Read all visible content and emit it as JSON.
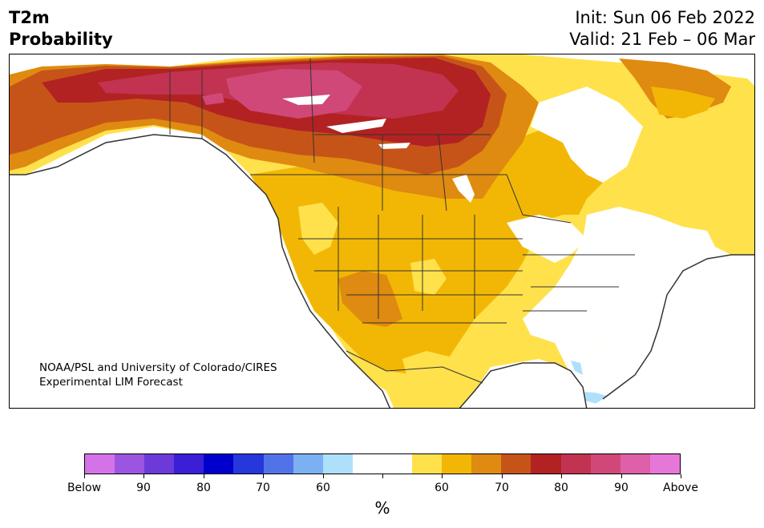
{
  "header": {
    "title_line1": "T2m",
    "title_line2": "Probability",
    "init": "Init: Sun 06 Feb 2022",
    "valid": "Valid: 21 Feb – 06 Mar"
  },
  "credit": {
    "line1": "NOAA/PSL and University of Colorado/CIRES",
    "line2": "Experimental LIM Forecast"
  },
  "colorbar": {
    "unit": "%",
    "colors": [
      "#d473e8",
      "#9b55e0",
      "#6b3ad8",
      "#3a1fd6",
      "#0000cc",
      "#2637db",
      "#5273e8",
      "#7bb1f2",
      "#aee0fb",
      "#ffffff",
      "#ffffff",
      "#ffe14c",
      "#f2b705",
      "#df8a10",
      "#c65418",
      "#b22222",
      "#c13350",
      "#cf4878",
      "#dd60a8",
      "#e676d8"
    ],
    "ticks": [
      "Below",
      "90",
      "80",
      "70",
      "60",
      "",
      "60",
      "70",
      "80",
      "90",
      "Above"
    ]
  },
  "map": {
    "palette": {
      "p60": "#ffe14c",
      "p65": "#f2b705",
      "p70": "#df8a10",
      "p75": "#c65418",
      "p80": "#b22222",
      "p85": "#c13350",
      "p90": "#cf4878",
      "b60": "#aee0fb",
      "b65": "#7bb1f2",
      "water": "#ffffff",
      "border": "#333333"
    }
  }
}
